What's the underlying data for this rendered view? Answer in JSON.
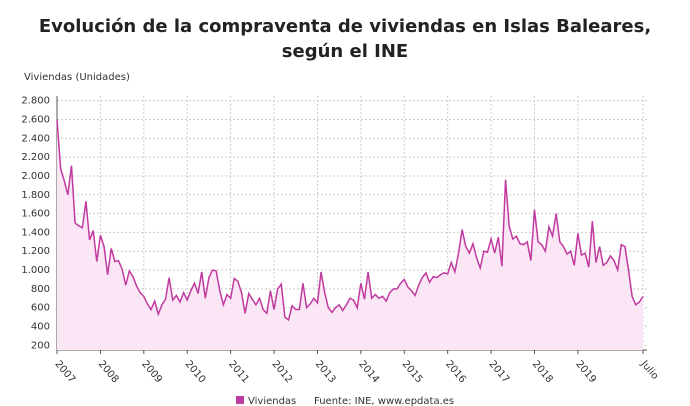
{
  "chart_data": {
    "type": "line",
    "title": "Evolución de la compraventa de viviendas en Islas Baleares, según el INE",
    "y_label": "Viviendas (Unidades)",
    "source": "Fuente: INE, www.epdata.es",
    "categories": [
      "2007",
      null,
      null,
      null,
      null,
      null,
      null,
      null,
      null,
      null,
      null,
      null,
      "2008",
      null,
      null,
      null,
      null,
      null,
      null,
      null,
      null,
      null,
      null,
      null,
      "2009",
      null,
      null,
      null,
      null,
      null,
      null,
      null,
      null,
      null,
      null,
      null,
      "2010",
      null,
      null,
      null,
      null,
      null,
      null,
      null,
      null,
      null,
      null,
      null,
      "2011",
      null,
      null,
      null,
      null,
      null,
      null,
      null,
      null,
      null,
      null,
      null,
      "2012",
      null,
      null,
      null,
      null,
      null,
      null,
      null,
      null,
      null,
      null,
      null,
      "2013",
      null,
      null,
      null,
      null,
      null,
      null,
      null,
      null,
      null,
      null,
      null,
      "2014",
      null,
      null,
      null,
      null,
      null,
      null,
      null,
      null,
      null,
      null,
      null,
      "2015",
      null,
      null,
      null,
      null,
      null,
      null,
      null,
      null,
      null,
      null,
      null,
      "2016",
      null,
      null,
      null,
      null,
      null,
      null,
      null,
      null,
      null,
      null,
      null,
      "2017",
      null,
      null,
      null,
      null,
      null,
      null,
      null,
      null,
      null,
      null,
      null,
      "2018",
      null,
      null,
      null,
      null,
      null,
      null,
      null,
      null,
      null,
      null,
      null,
      "2019",
      null,
      null,
      null,
      null,
      null,
      null,
      null,
      null,
      null,
      null,
      null,
      null,
      null,
      null,
      null,
      null,
      null,
      "Julio"
    ],
    "series": [
      {
        "name": "Viviendas",
        "color": "#c03a9f",
        "values": [
          2600,
          2080,
          1950,
          1800,
          2110,
          1500,
          1470,
          1450,
          1730,
          1320,
          1420,
          1090,
          1370,
          1250,
          950,
          1230,
          1090,
          1100,
          1010,
          840,
          990,
          930,
          830,
          760,
          720,
          640,
          580,
          670,
          530,
          630,
          690,
          920,
          680,
          730,
          660,
          760,
          680,
          780,
          860,
          750,
          980,
          700,
          920,
          1000,
          990,
          780,
          630,
          740,
          700,
          910,
          880,
          760,
          540,
          750,
          690,
          630,
          700,
          580,
          540,
          780,
          580,
          800,
          850,
          500,
          470,
          620,
          580,
          580,
          860,
          600,
          640,
          700,
          650,
          980,
          760,
          600,
          550,
          600,
          630,
          570,
          630,
          700,
          680,
          600,
          860,
          690,
          980,
          700,
          740,
          700,
          720,
          670,
          760,
          800,
          800,
          860,
          900,
          820,
          780,
          730,
          840,
          920,
          970,
          870,
          930,
          920,
          950,
          970,
          960,
          1080,
          980,
          1180,
          1430,
          1250,
          1180,
          1280,
          1130,
          1020,
          1200,
          1190,
          1330,
          1180,
          1350,
          1040,
          1960,
          1470,
          1330,
          1360,
          1280,
          1270,
          1300,
          1100,
          1640,
          1300,
          1270,
          1200,
          1460,
          1360,
          1600,
          1300,
          1250,
          1170,
          1200,
          1050,
          1390,
          1160,
          1180,
          1030,
          1520,
          1080,
          1250,
          1050,
          1080,
          1150,
          1100,
          1000,
          1270,
          1250,
          1000,
          720,
          630,
          660,
          720
        ]
      }
    ],
    "ylim": [
      150,
      2850
    ],
    "yticks": [
      200,
      400,
      600,
      800,
      {
        "value": 1000,
        "label": "1.000"
      },
      {
        "value": 1200,
        "label": "1.200"
      },
      {
        "value": 1400,
        "label": "1.400"
      },
      {
        "value": 1600,
        "label": "1.600"
      },
      {
        "value": 1800,
        "label": "1.800"
      },
      {
        "value": 2000,
        "label": "2.000"
      },
      {
        "value": 2200,
        "label": "2.200"
      },
      {
        "value": 2400,
        "label": "2.400"
      },
      {
        "value": 2600,
        "label": "2.600"
      },
      {
        "value": 2800,
        "label": "2.800"
      }
    ],
    "grid": true,
    "area_fill": "#fbe6f5"
  }
}
